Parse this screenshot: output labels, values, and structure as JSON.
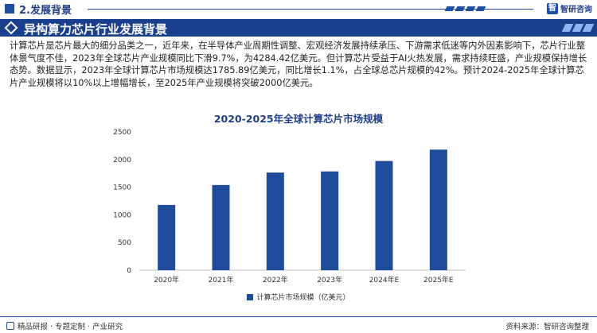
{
  "header": {
    "section_title": "2.发展背景",
    "brand_icon_text": "智",
    "brand_name": "智研咨询"
  },
  "title_bar": {
    "title": "异构算力芯片行业发展背景"
  },
  "paragraph": {
    "text": "计算芯片是芯片最大的细分品类之一，近年来，在半导体产业周期性调整、宏观经济发展持续承压、下游需求低迷等内外因素影响下，芯片行业整体景气度不佳，2023年全球芯片产业规模同比下滑9.7%，为4284.42亿美元。但计算芯片受益于AI火热发展，需求持续旺盛，产业规模保持增长态势。数据显示，2023年全球计算芯片市场规模达1785.89亿美元，同比增长1.1%，占全球总芯片规模的42%。预计2024-2025年全球计算芯片产业规模将以10%以上增幅增长，至2025年产业规模将突破2000亿美元。"
  },
  "chart_data": {
    "type": "bar",
    "title": "2020-2025年全球计算芯片市场规模",
    "categories": [
      "2020年",
      "2021年",
      "2022年",
      "2023年",
      "2024年E",
      "2025年E"
    ],
    "series": [
      {
        "name": "计算芯片市场规模（亿美元）",
        "values": [
          1180,
          1540,
          1765,
          1785.89,
          1975,
          2180
        ]
      }
    ],
    "ylim": [
      0,
      2500
    ],
    "yticks": [
      0,
      500,
      1000,
      1500,
      2000,
      2500
    ],
    "grid": false,
    "legend_position": "bottom",
    "bar_color": "#1e4c9a"
  },
  "footer": {
    "left_text": "精品研报 · 专题定制 · 产业研究",
    "right_text": "资料来源：智研咨询整理"
  },
  "colors": {
    "primary": "#1a3f8c",
    "accent": "#1f4ea3"
  }
}
